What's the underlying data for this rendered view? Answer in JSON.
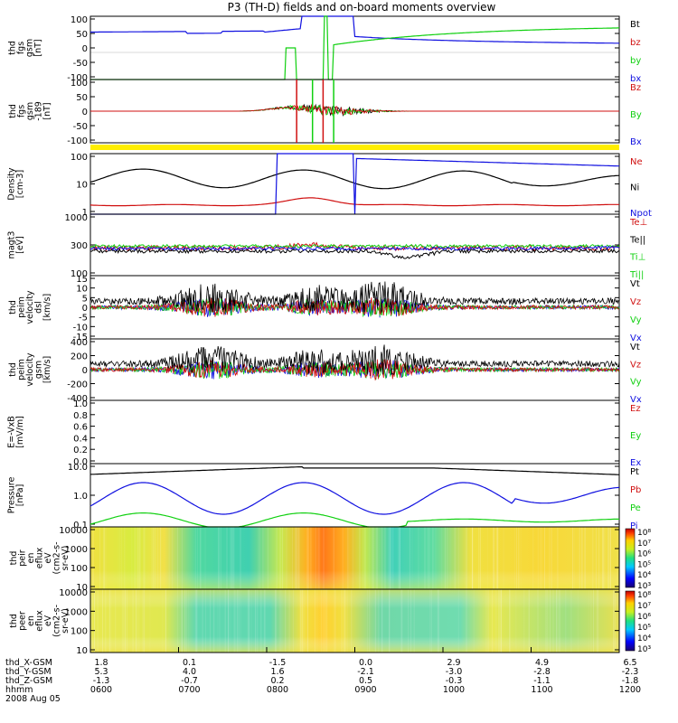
{
  "title": "P3 (TH-D) fields and on-board moments overview",
  "colors": {
    "black": "#000000",
    "red": "#d01010",
    "green": "#10d010",
    "blue": "#1010e0",
    "yellow": "#ffee00"
  },
  "chart_data": [
    {
      "id": "fgs",
      "type": "line",
      "ylabel": [
        "thd",
        "fgs",
        "gsm",
        "[nT]"
      ],
      "yticks": [
        "100",
        "50",
        "0",
        "-50",
        "-100"
      ],
      "legend": [
        {
          "name": "Bt",
          "color": "black"
        },
        {
          "name": "bz",
          "color": "red"
        },
        {
          "name": "by",
          "color": "green"
        },
        {
          "name": "bx",
          "color": "blue"
        }
      ]
    },
    {
      "id": "fgs_spin",
      "type": "line",
      "ylabel": [
        "thd",
        "fgs",
        "gsm",
        "-189",
        "[nT]"
      ],
      "yticks": [
        "100",
        "50",
        "0",
        "-50",
        "-100"
      ],
      "legend": [
        {
          "name": "Bz",
          "color": "red"
        },
        {
          "name": "By",
          "color": "green"
        },
        {
          "name": "Bx",
          "color": "blue"
        }
      ]
    },
    {
      "id": "density",
      "type": "line",
      "ylabel": [
        "Density",
        "[cm-3]"
      ],
      "yticks": [
        "100",
        "10",
        "1"
      ],
      "legend": [
        {
          "name": "Ne",
          "color": "red"
        },
        {
          "name": "Ni",
          "color": "black"
        },
        {
          "name": "Npot",
          "color": "blue"
        }
      ]
    },
    {
      "id": "temp",
      "type": "line",
      "ylabel": [
        "magt3",
        "[eV]"
      ],
      "yticks": [
        "1000",
        "300",
        "100"
      ],
      "legend": [
        {
          "name": "Te⊥",
          "color": "red"
        },
        {
          "name": "Te||",
          "color": "black"
        },
        {
          "name": "Ti⊥",
          "color": "green"
        },
        {
          "name": "Ti||",
          "color": "green"
        }
      ]
    },
    {
      "id": "veleim",
      "type": "line",
      "ylabel": [
        "thd",
        "peim",
        "velocity",
        "dsl",
        "[km/s]"
      ],
      "yticks": [
        "15",
        "10",
        "5",
        "0",
        "-5",
        "-10",
        "-15"
      ],
      "legend": [
        {
          "name": "Vt",
          "color": "black"
        },
        {
          "name": "Vz",
          "color": "red"
        },
        {
          "name": "Vy",
          "color": "green"
        },
        {
          "name": "Vx",
          "color": "blue"
        }
      ]
    },
    {
      "id": "velgsm",
      "type": "line",
      "ylabel": [
        "thd",
        "peim",
        "velocity",
        "gsm",
        "[km/s]"
      ],
      "yticks": [
        "400",
        "200",
        "0",
        "-200",
        "-400"
      ],
      "legend": [
        {
          "name": "Vt",
          "color": "black"
        },
        {
          "name": "Vz",
          "color": "red"
        },
        {
          "name": "Vy",
          "color": "green"
        },
        {
          "name": "Vx",
          "color": "blue"
        }
      ]
    },
    {
      "id": "evxb",
      "type": "line",
      "ylabel": [
        "E=-VxB",
        "[mV/m]"
      ],
      "yticks": [
        "1.0",
        "0.8",
        "0.6",
        "0.4",
        "0.2",
        "0.0"
      ],
      "legend": [
        {
          "name": "Ez",
          "color": "red"
        },
        {
          "name": "Ey",
          "color": "green"
        },
        {
          "name": "Ex",
          "color": "blue"
        }
      ]
    },
    {
      "id": "pressure",
      "type": "line",
      "ylabel": [
        "Pressure",
        "[nPa]"
      ],
      "yticks": [
        "10.0",
        "1.0",
        "0.1"
      ],
      "legend": [
        {
          "name": "Pt",
          "color": "black"
        },
        {
          "name": "Pb",
          "color": "red"
        },
        {
          "name": "Pe",
          "color": "green"
        },
        {
          "name": "Pi",
          "color": "blue"
        }
      ]
    },
    {
      "id": "ion_spec",
      "type": "heatmap",
      "ylabel": [
        "thd",
        "peir",
        "en",
        "eflux",
        "eV",
        "(cm2-s-",
        "sr-eV)"
      ],
      "yticks": [
        "10000",
        "1000",
        "100",
        "10"
      ],
      "colorbar": [
        "10⁸",
        "10⁷",
        "10⁶",
        "10⁵",
        "10⁴",
        "10³"
      ]
    },
    {
      "id": "elec_spec",
      "type": "heatmap",
      "ylabel": [
        "thd",
        "peer",
        "en",
        "eflux",
        "eV",
        "(cm2-s-",
        "sr-eV)"
      ],
      "yticks": [
        "10000",
        "1000",
        "100",
        "10"
      ],
      "colorbar": [
        "10⁸",
        "10⁷",
        "10⁶",
        "10⁵",
        "10⁴",
        "10³"
      ]
    }
  ],
  "xaxis": {
    "row_labels": [
      "thd_X-GSM",
      "thd_Y-GSM",
      "thd_Z-GSM",
      "hhmm",
      "2008 Aug 05"
    ],
    "columns": [
      {
        "x": "1.8",
        "y": "5.3",
        "z": "-1.3",
        "t": "0600"
      },
      {
        "x": "0.1",
        "y": "4.0",
        "z": "-0.7",
        "t": "0700"
      },
      {
        "x": "-1.5",
        "y": "1.6",
        "z": "0.2",
        "t": "0800"
      },
      {
        "x": "0.0",
        "y": "-2.1",
        "z": "0.5",
        "t": "0900"
      },
      {
        "x": "2.9",
        "y": "-3.0",
        "z": "-0.3",
        "t": "1000"
      },
      {
        "x": "4.9",
        "y": "-2.8",
        "z": "-1.1",
        "t": "1100"
      },
      {
        "x": "6.5",
        "y": "-2.3",
        "z": "-1.8",
        "t": "1200"
      }
    ]
  }
}
